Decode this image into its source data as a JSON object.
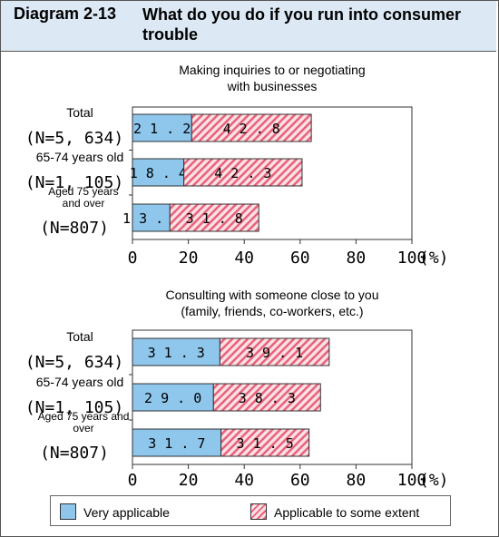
{
  "header": {
    "label": "Diagram 2-13",
    "title": "What do you do if you run into consumer trouble"
  },
  "colors": {
    "very_applicable": "#8ec6ec",
    "applicable_some": "#f6b3c0",
    "applicable_some_stripe": "#e8627a",
    "header_bg": "#dce9f5"
  },
  "legend": {
    "very_applicable": "Very applicable",
    "applicable_some": "Applicable to some extent"
  },
  "chart_data": [
    {
      "type": "bar",
      "orientation": "horizontal",
      "stacked": true,
      "title_lines": [
        "Making inquiries to or negotiating",
        "with businesses"
      ],
      "categories": [
        {
          "label_lines": [
            "Total"
          ],
          "n": "(N=5, 634)"
        },
        {
          "label_lines": [
            "65-74 years old"
          ],
          "n": "(N=1, 105)"
        },
        {
          "label_lines": [
            "Aged 75 years",
            "and over"
          ],
          "n": "(N=807)"
        }
      ],
      "series": [
        {
          "name": "Very applicable",
          "values": [
            21.2,
            18.4,
            13.4
          ]
        },
        {
          "name": "Applicable to some extent",
          "values": [
            42.8,
            42.3,
            31.8
          ]
        }
      ],
      "xlim": [
        0,
        100
      ],
      "xticks": [
        "0",
        "20",
        "40",
        "60",
        "80",
        "100"
      ],
      "unit": "(%)"
    },
    {
      "type": "bar",
      "orientation": "horizontal",
      "stacked": true,
      "title_lines": [
        "Consulting with someone close to you",
        "(family, friends, co-workers, etc.)"
      ],
      "categories": [
        {
          "label_lines": [
            "Total"
          ],
          "n": "(N=5, 634)"
        },
        {
          "label_lines": [
            "65-74 years old"
          ],
          "n": "(N=1, 105)"
        },
        {
          "label_lines": [
            "Aged 75 years and",
            "over"
          ],
          "n": "(N=807)"
        }
      ],
      "series": [
        {
          "name": "Very applicable",
          "values": [
            31.3,
            29.0,
            31.7
          ]
        },
        {
          "name": "Applicable to some extent",
          "values": [
            39.1,
            38.3,
            31.5
          ]
        }
      ],
      "xlim": [
        0,
        100
      ],
      "xticks": [
        "0",
        "20",
        "40",
        "60",
        "80",
        "100"
      ],
      "unit": "(%)"
    }
  ]
}
